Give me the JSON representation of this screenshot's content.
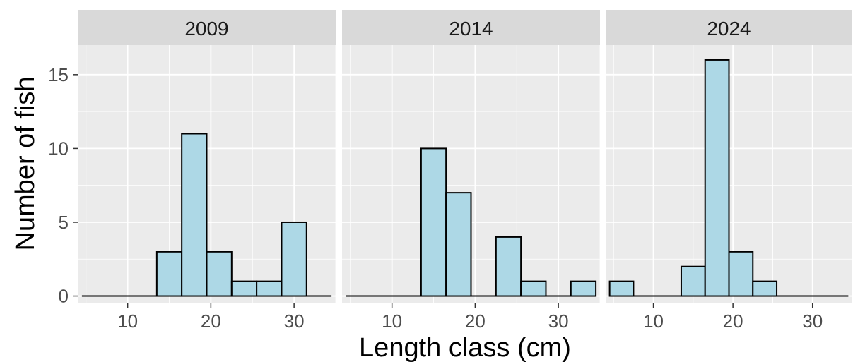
{
  "chart_data": {
    "type": "bar",
    "chart_kind": "faceted histogram",
    "xlabel": "Length class (cm)",
    "ylabel": "Number of fish",
    "xlim": [
      4,
      35
    ],
    "ylim": [
      -0.5,
      17
    ],
    "x_ticks": [
      10,
      20,
      30
    ],
    "y_ticks": [
      0,
      5,
      10,
      15
    ],
    "bin_width": 3,
    "bin_centers": [
      6,
      9,
      12,
      15,
      18,
      21,
      24,
      27,
      30,
      33
    ],
    "grid": true,
    "colors": {
      "fill": "#add8e6",
      "outline": "#000000",
      "panel": "#ebebeb",
      "strip": "#d9d9d9",
      "grid": "#ffffff"
    },
    "facets": [
      {
        "label": "2009",
        "values": [
          0,
          0,
          0,
          3,
          11,
          3,
          1,
          1,
          5,
          0
        ]
      },
      {
        "label": "2014",
        "values": [
          0,
          0,
          0,
          10,
          7,
          0,
          4,
          1,
          0,
          1
        ]
      },
      {
        "label": "2024",
        "values": [
          1,
          0,
          0,
          2,
          16,
          3,
          1,
          0,
          0,
          0
        ]
      }
    ]
  }
}
